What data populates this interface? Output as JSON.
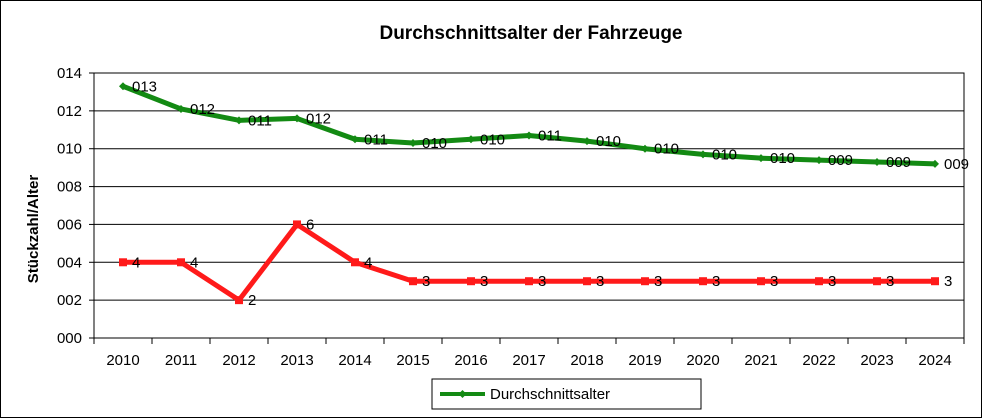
{
  "chart_data": {
    "type": "line",
    "title": "Durchschnittsalter der Fahrzeuge",
    "xlabel": "",
    "ylabel": "Stückzahl/Alter",
    "categories": [
      "2010",
      "2011",
      "2012",
      "2013",
      "2014",
      "2015",
      "2016",
      "2017",
      "2018",
      "2019",
      "2020",
      "2021",
      "2022",
      "2023",
      "2024"
    ],
    "yticks": [
      "000",
      "002",
      "004",
      "006",
      "008",
      "010",
      "012",
      "014"
    ],
    "ylim": [
      0,
      14
    ],
    "grid": true,
    "legend_position": "bottom",
    "series": [
      {
        "name": "Durchschnittsalter",
        "color": "#138a13",
        "marker": "diamond",
        "values": [
          13.3,
          12.1,
          11.5,
          11.6,
          10.5,
          10.3,
          10.5,
          10.7,
          10.4,
          10.0,
          9.7,
          9.5,
          9.4,
          9.3,
          9.2
        ],
        "labels": [
          "013",
          "012",
          "011",
          "012",
          "011",
          "010",
          "010",
          "011",
          "010",
          "010",
          "010",
          "010",
          "009",
          "009",
          "009"
        ],
        "in_legend": true
      },
      {
        "name": "",
        "color": "#ff1a1a",
        "marker": "square",
        "values": [
          4,
          4,
          2,
          6,
          4,
          3,
          3,
          3,
          3,
          3,
          3,
          3,
          3,
          3,
          3
        ],
        "labels": [
          "4",
          "4",
          "2",
          "6",
          "4",
          "3",
          "3",
          "3",
          "3",
          "3",
          "3",
          "3",
          "3",
          "3",
          "3"
        ],
        "in_legend": false
      }
    ]
  }
}
